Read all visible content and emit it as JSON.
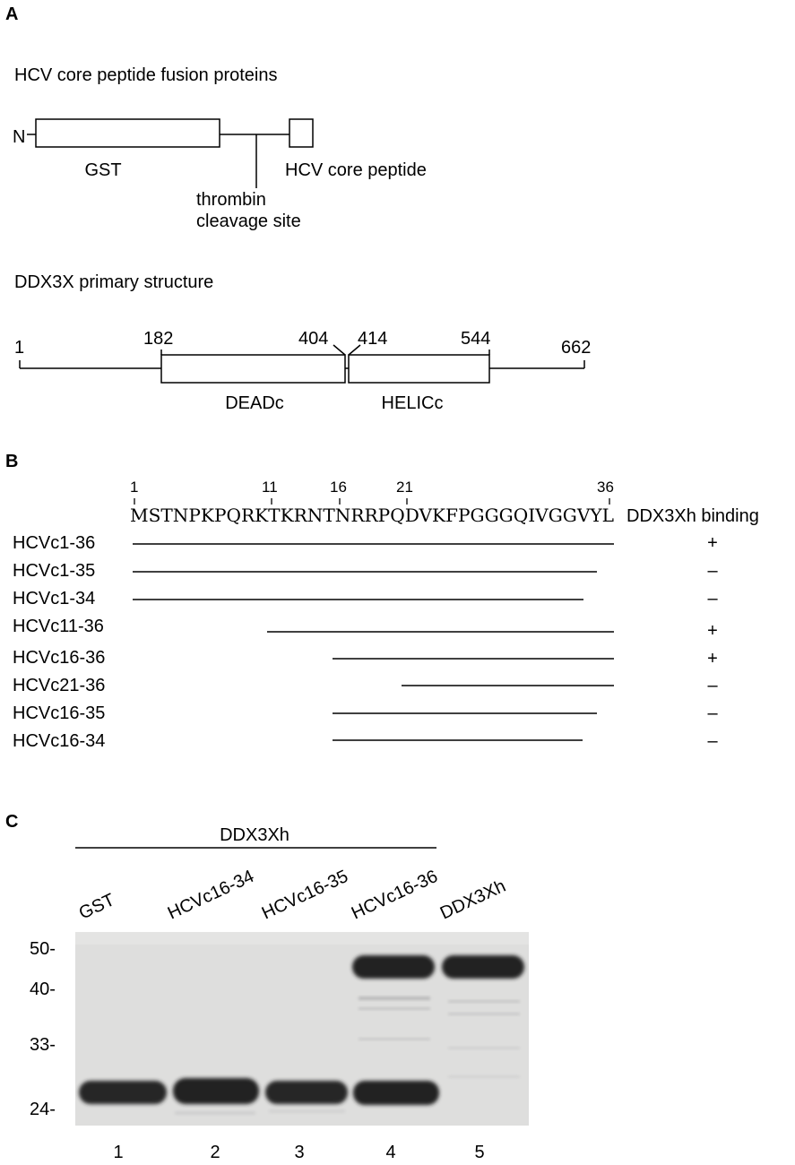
{
  "panels": {
    "a": {
      "label": "A",
      "fusion": {
        "title": "HCV core peptide fusion proteins",
        "n_terminus": "N",
        "gst": "GST",
        "core_peptide": "HCV core peptide",
        "cleavage_line1": "thrombin",
        "cleavage_line2": "cleavage site"
      },
      "ddx3x": {
        "title": "DDX3X primary structure",
        "positions": [
          "1",
          "182",
          "404",
          "414",
          "544",
          "662"
        ],
        "domain1": "DEADc",
        "domain2": "HELICc"
      }
    },
    "b": {
      "label": "B",
      "sequence": "MSTNPKPQRKTKRNTNRRPQDVKFPGGGQIVGGVYL",
      "ticks": [
        "1",
        "11",
        "16",
        "21",
        "36"
      ],
      "binding_header": "DDX3Xh binding",
      "constructs": [
        {
          "name": "HCVc1-36",
          "start": 1,
          "end": 36,
          "binding": "+"
        },
        {
          "name": "HCVc1-35",
          "start": 1,
          "end": 35,
          "binding": "–"
        },
        {
          "name": "HCVc1-34",
          "start": 1,
          "end": 34,
          "binding": "–"
        },
        {
          "name": "HCVc11-36",
          "start": 11,
          "end": 36,
          "binding": "+"
        },
        {
          "name": "HCVc16-36",
          "start": 16,
          "end": 36,
          "binding": "+"
        },
        {
          "name": "HCVc21-36",
          "start": 21,
          "end": 36,
          "binding": "–"
        },
        {
          "name": "HCVc16-35",
          "start": 16,
          "end": 35,
          "binding": "–"
        },
        {
          "name": "HCVc16-34",
          "start": 16,
          "end": 34,
          "binding": "–"
        }
      ]
    },
    "c": {
      "label": "C",
      "group_label": "DDX3Xh",
      "lane_labels": [
        "GST",
        "HCVc16-34",
        "HCVc16-35",
        "HCVc16-36",
        "DDX3Xh"
      ],
      "markers": [
        "50-",
        "40-",
        "33-",
        "24-"
      ],
      "lane_numbers": [
        "1",
        "2",
        "3",
        "4",
        "5"
      ]
    }
  }
}
